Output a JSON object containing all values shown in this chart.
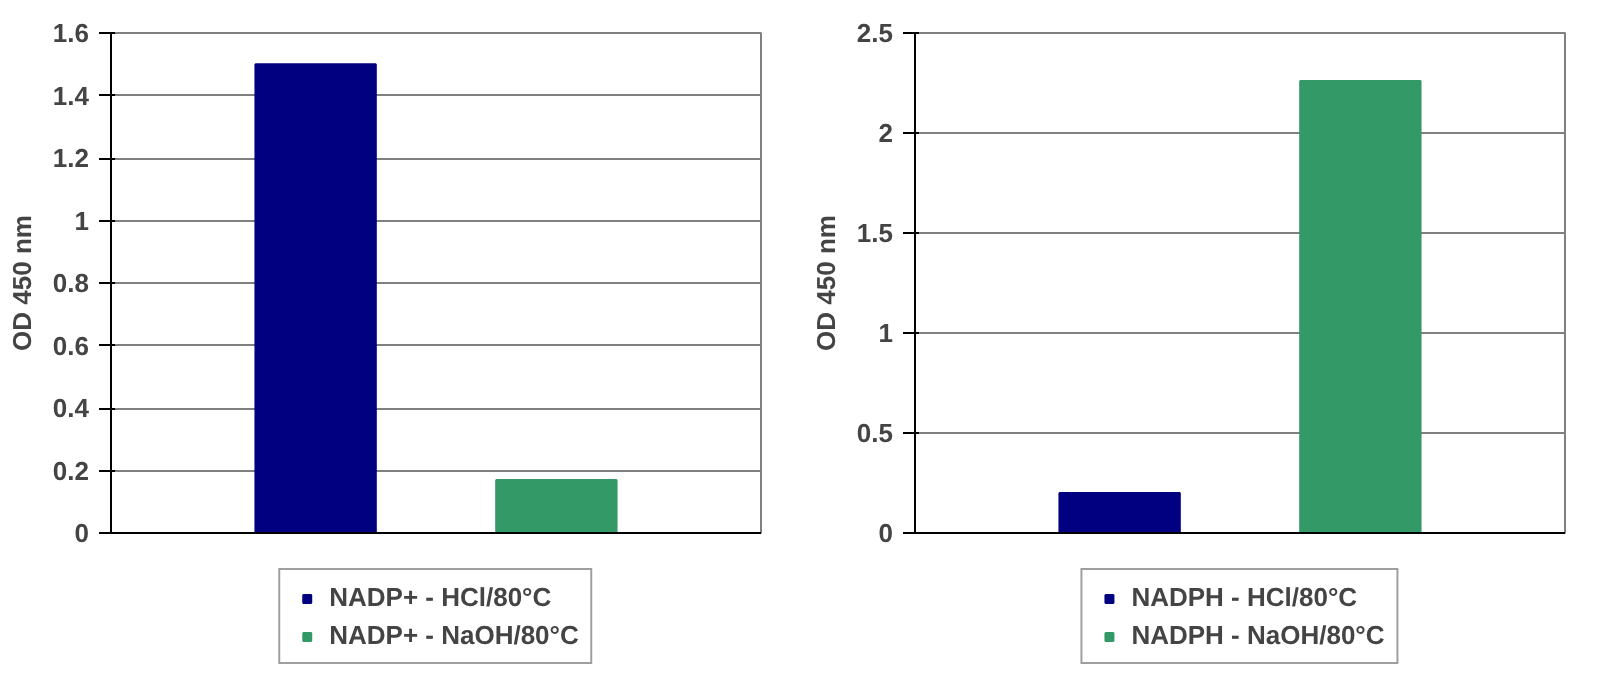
{
  "chart_data": [
    {
      "type": "bar",
      "ylabel": "OD 450 nm",
      "categories": [
        null,
        null
      ],
      "ylim": [
        0,
        1.6
      ],
      "yticks": [
        0,
        0.2,
        0.4,
        0.6,
        0.8,
        1,
        1.2,
        1.4,
        1.6
      ],
      "grid": "y",
      "legend": "bottom",
      "series": [
        {
          "name": "NADP+ - HCl/80°C",
          "color": "#000080",
          "values": [
            1.5,
            null
          ]
        },
        {
          "name": "NADP+ - NaOH/80°C",
          "color": "#339966",
          "values": [
            null,
            0.17
          ]
        }
      ]
    },
    {
      "type": "bar",
      "ylabel": "OD 450 nm",
      "categories": [
        null,
        null
      ],
      "ylim": [
        0,
        2.5
      ],
      "yticks": [
        0,
        0.5,
        1,
        1.5,
        2,
        2.5
      ],
      "grid": "y",
      "legend": "bottom",
      "series": [
        {
          "name": "NADPH - HCl/80°C",
          "color": "#000080",
          "values": [
            0.2,
            null
          ]
        },
        {
          "name": "NADPH - NaOH/80°C",
          "color": "#339966",
          "values": [
            null,
            2.26
          ]
        }
      ]
    }
  ]
}
